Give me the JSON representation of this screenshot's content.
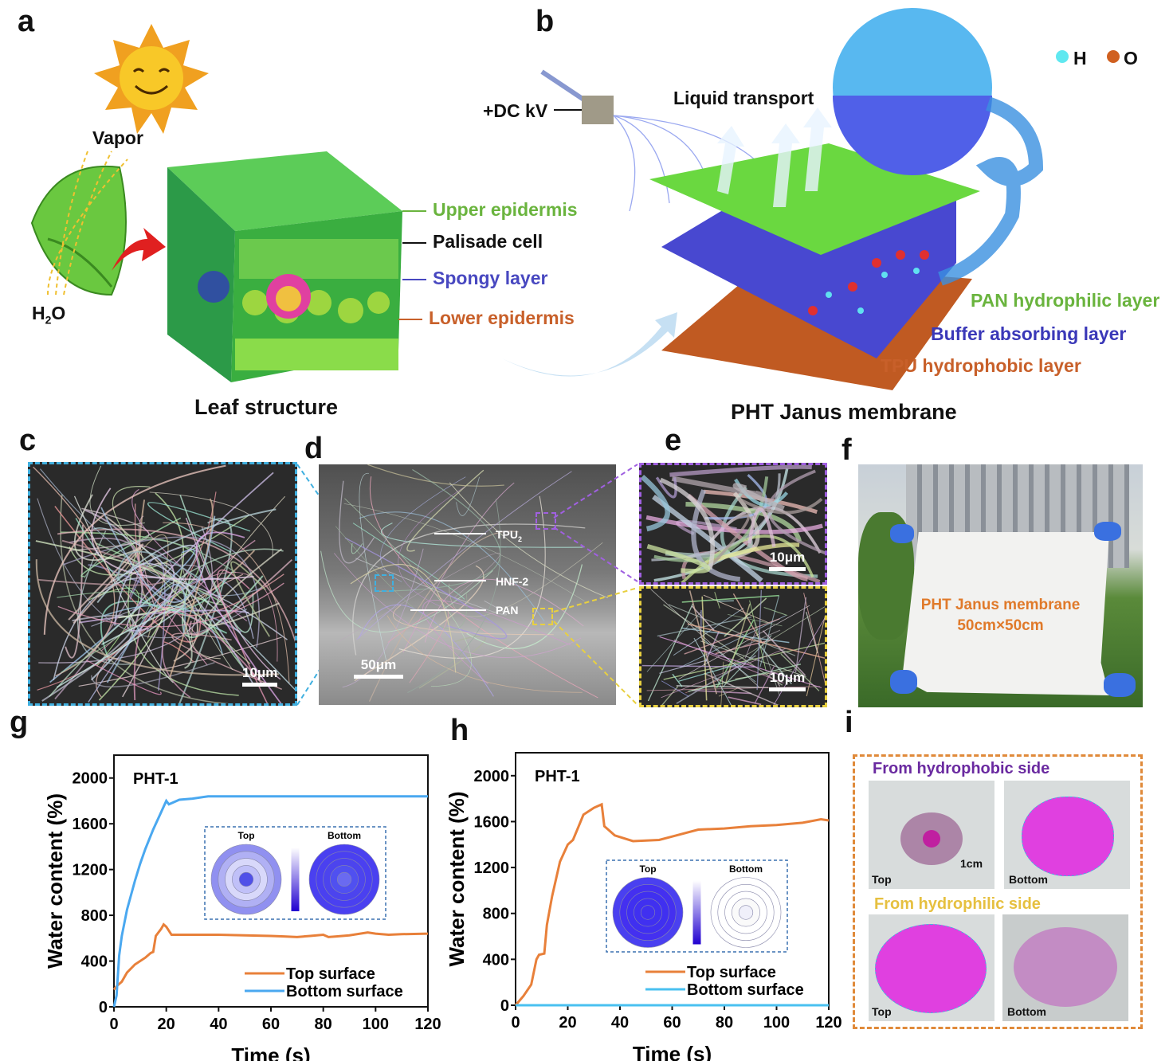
{
  "panels": {
    "a": "a",
    "b": "b",
    "c": "c",
    "d": "d",
    "e": "e",
    "f": "f",
    "g": "g",
    "h": "h",
    "i": "i"
  },
  "panel_a": {
    "vapor": "Vapor",
    "h2o_main": "H",
    "h2o_sub": "2",
    "h2o_end": "O",
    "caption": "Leaf structure",
    "layers": [
      {
        "text": "Upper epidermis",
        "color": "#6ab43e"
      },
      {
        "text": "Palisade cell",
        "color": "#111111"
      },
      {
        "text": "Spongy layer",
        "color": "#4848c0"
      },
      {
        "text": "Lower epidermis",
        "color": "#c8602a"
      }
    ]
  },
  "panel_b": {
    "dc": "+DC kV",
    "liquid": "Liquid transport",
    "legend_h": "H",
    "legend_o": "O",
    "caption": "PHT Janus membrane",
    "layers": [
      {
        "text": "PAN hydrophilic layer",
        "color": "#6ab43e"
      },
      {
        "text": "Buffer absorbing layer",
        "color": "#3a38b8"
      },
      {
        "text": "TPU hydrophobic layer",
        "color": "#c8602a"
      }
    ]
  },
  "panel_c": {
    "scale": "10μm"
  },
  "panel_d": {
    "tpu": "TPU",
    "tpu_sub": "2",
    "hnf": "HNF-2",
    "pan": "PAN",
    "scale": "50μm"
  },
  "panel_e": {
    "scale_top": "10μm",
    "scale_bottom": "10μm"
  },
  "panel_f": {
    "line1": "PHT Janus membrane",
    "line2": "50cm×50cm"
  },
  "panel_i": {
    "hydrophobic_title": "From hydrophobic side",
    "hydrophilic_title": "From hydrophilic side",
    "top": "Top",
    "bottom": "Bottom",
    "scale": "1cm",
    "colors": {
      "hydrophobic": "#6a2aa0",
      "hydrophilic": "#e6c040",
      "border": "#e08a3a",
      "dye": "#e040e0"
    }
  },
  "chart_data": [
    {
      "type": "line",
      "annotation": "PHT-1",
      "xlabel": "Time (s)",
      "ylabel": "Water content (%)",
      "xlim": [
        0,
        120
      ],
      "ylim": [
        0,
        2200
      ],
      "xticks": [
        0,
        20,
        40,
        60,
        80,
        100,
        120
      ],
      "yticks": [
        0,
        400,
        800,
        1200,
        1600,
        2000
      ],
      "legend": "bottom-right",
      "grid": false,
      "inset": {
        "left": "Top",
        "right": "Bottom"
      },
      "series": [
        {
          "name": "Top surface",
          "color": "#e8803a",
          "x": [
            0,
            1,
            3,
            5,
            8,
            12,
            14,
            15,
            16,
            18,
            19,
            20,
            22,
            30,
            40,
            50,
            60,
            65,
            70,
            75,
            80,
            82,
            85,
            90,
            97,
            100,
            105,
            110,
            120
          ],
          "y": [
            150,
            180,
            220,
            300,
            370,
            430,
            470,
            480,
            620,
            680,
            720,
            700,
            630,
            630,
            630,
            625,
            620,
            615,
            610,
            620,
            630,
            610,
            615,
            625,
            650,
            640,
            630,
            635,
            640
          ]
        },
        {
          "name": "Bottom surface",
          "color": "#4aa8f0",
          "x": [
            0,
            1,
            2,
            3,
            5,
            8,
            10,
            12,
            15,
            18,
            20,
            21,
            25,
            30,
            36,
            60,
            120
          ],
          "y": [
            0,
            100,
            450,
            620,
            850,
            1100,
            1250,
            1380,
            1550,
            1700,
            1800,
            1770,
            1810,
            1820,
            1840,
            1840,
            1840
          ]
        }
      ]
    },
    {
      "type": "line",
      "annotation": "PHT-1",
      "xlabel": "Time (s)",
      "ylabel": "Water content (%)",
      "xlim": [
        0,
        120
      ],
      "ylim": [
        0,
        2200
      ],
      "xticks": [
        0,
        20,
        40,
        60,
        80,
        100,
        120
      ],
      "yticks": [
        0,
        400,
        800,
        1200,
        1600,
        2000
      ],
      "legend": "bottom-right",
      "grid": false,
      "inset": {
        "left": "Top",
        "right": "Bottom"
      },
      "series": [
        {
          "name": "Top surface",
          "color": "#e8803a",
          "x": [
            0,
            3,
            6,
            8,
            9,
            11,
            12,
            14,
            17,
            20,
            22,
            24,
            26,
            30,
            32,
            33,
            34,
            38,
            45,
            55,
            60,
            70,
            80,
            90,
            100,
            110,
            117,
            120
          ],
          "y": [
            0,
            80,
            180,
            400,
            440,
            450,
            700,
            950,
            1250,
            1400,
            1440,
            1550,
            1660,
            1720,
            1740,
            1750,
            1560,
            1480,
            1430,
            1440,
            1470,
            1530,
            1540,
            1560,
            1570,
            1590,
            1620,
            1610
          ]
        },
        {
          "name": "Bottom surface",
          "color": "#4ac0f0",
          "x": [
            0,
            120
          ],
          "y": [
            0,
            0
          ]
        }
      ]
    }
  ]
}
